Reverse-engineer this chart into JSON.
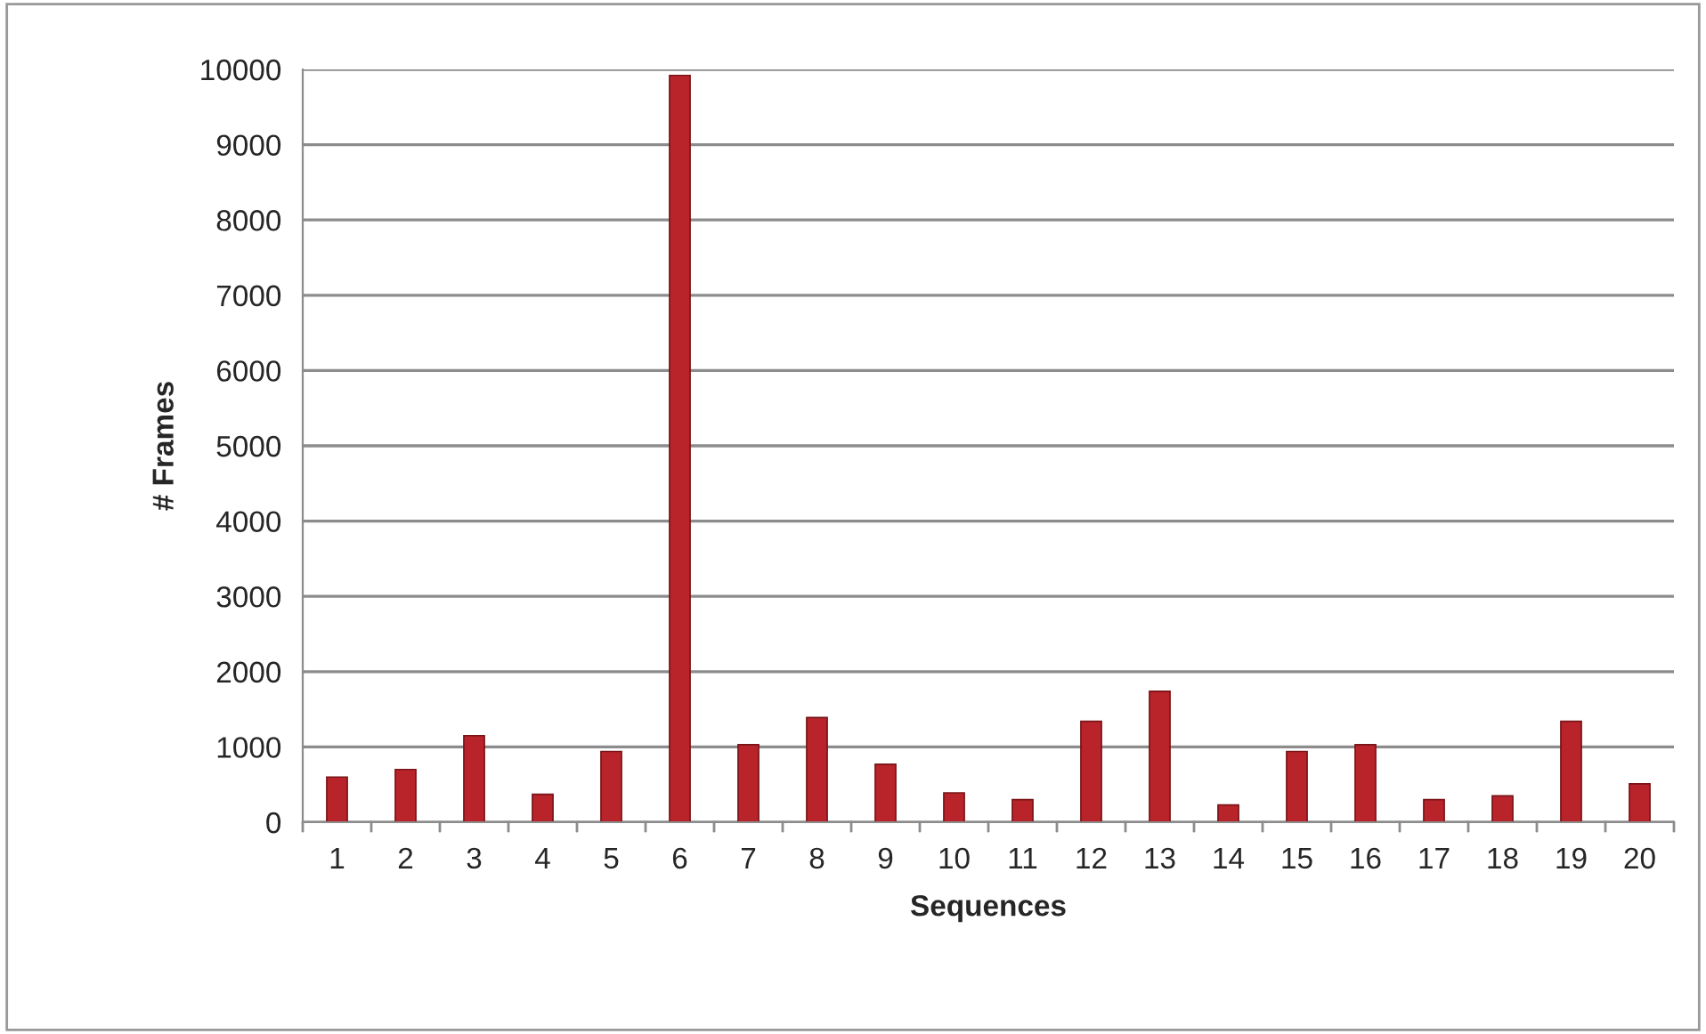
{
  "chart_data": {
    "type": "bar",
    "xlabel": "Sequences",
    "ylabel": "# Frames",
    "categories": [
      "1",
      "2",
      "3",
      "4",
      "5",
      "6",
      "7",
      "8",
      "9",
      "10",
      "11",
      "12",
      "13",
      "14",
      "15",
      "16",
      "17",
      "18",
      "19",
      "20"
    ],
    "values": [
      600,
      700,
      1150,
      370,
      940,
      9920,
      1030,
      1390,
      770,
      390,
      300,
      1340,
      1740,
      230,
      940,
      1030,
      300,
      350,
      1340,
      510
    ],
    "color": "#b8242a",
    "ylim": [
      0,
      10000
    ],
    "yticks": [
      0,
      1000,
      2000,
      3000,
      4000,
      5000,
      6000,
      7000,
      8000,
      9000,
      10000
    ],
    "grid": "y",
    "legend": false
  }
}
